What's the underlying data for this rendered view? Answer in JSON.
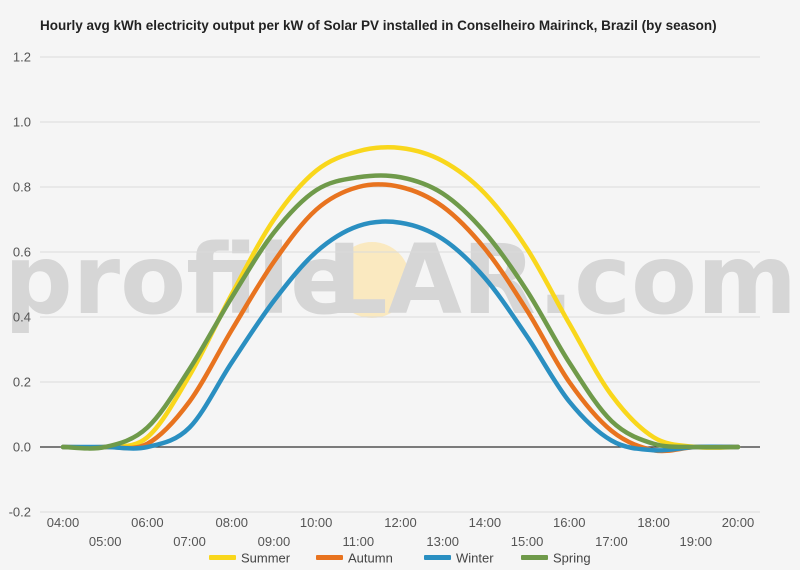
{
  "title": "Hourly avg kWh electricity output per kW of Solar PV installed in Conselheiro Mairinck, Brazil (by season)",
  "watermark": {
    "left": "profile",
    "right": "LAR.com"
  },
  "chart_data": {
    "type": "line",
    "title": "Hourly avg kWh electricity output per kW of Solar PV installed in Conselheiro Mairinck, Brazil (by season)",
    "xlabel": "",
    "ylabel": "",
    "ylim": [
      -0.2,
      1.2
    ],
    "yticks": [
      -0.2,
      0.0,
      0.2,
      0.4,
      0.6,
      0.8,
      1.0,
      1.2
    ],
    "ytick_labels": [
      "-0.2",
      "0.0",
      "0.2",
      "0.4",
      "0.6",
      "0.8",
      "1.0",
      "1.2"
    ],
    "x": [
      "04:00",
      "05:00",
      "06:00",
      "07:00",
      "08:00",
      "09:00",
      "10:00",
      "11:00",
      "12:00",
      "13:00",
      "14:00",
      "15:00",
      "16:00",
      "17:00",
      "18:00",
      "19:00",
      "20:00"
    ],
    "grid": true,
    "legend_position": "bottom",
    "series": [
      {
        "name": "Summer",
        "color": "#f9d71c",
        "values": [
          0,
          0,
          0.03,
          0.22,
          0.47,
          0.7,
          0.85,
          0.91,
          0.92,
          0.88,
          0.78,
          0.61,
          0.38,
          0.16,
          0.03,
          0,
          0
        ]
      },
      {
        "name": "Autumn",
        "color": "#e8731f",
        "values": [
          0,
          0,
          0.01,
          0.14,
          0.36,
          0.57,
          0.73,
          0.8,
          0.8,
          0.74,
          0.61,
          0.42,
          0.2,
          0.05,
          -0.01,
          0,
          0
        ]
      },
      {
        "name": "Winter",
        "color": "#2a8fc1",
        "values": [
          0,
          0,
          0,
          0.06,
          0.26,
          0.45,
          0.6,
          0.68,
          0.69,
          0.64,
          0.52,
          0.34,
          0.14,
          0.02,
          -0.01,
          0,
          0
        ]
      },
      {
        "name": "Spring",
        "color": "#6f9a4a",
        "values": [
          0,
          0,
          0.06,
          0.24,
          0.46,
          0.66,
          0.79,
          0.83,
          0.83,
          0.78,
          0.66,
          0.48,
          0.26,
          0.08,
          0.01,
          0,
          0
        ]
      }
    ]
  }
}
